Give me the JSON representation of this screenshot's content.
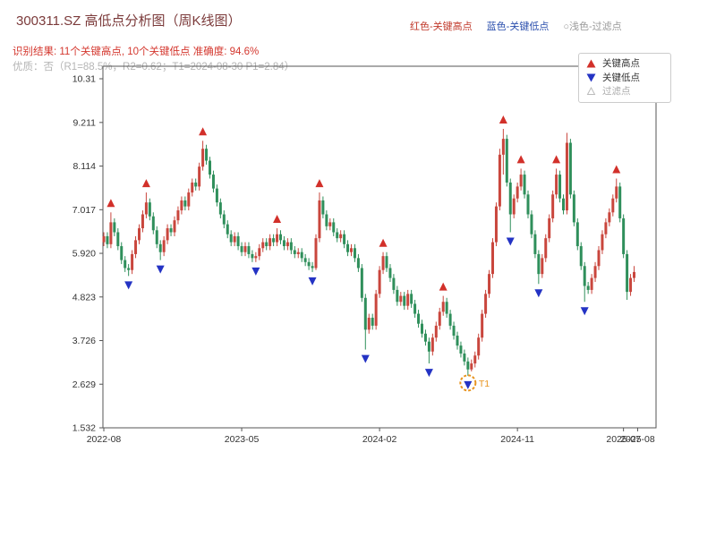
{
  "header": {
    "title": "300311.SZ 高低点分析图（周K线图）",
    "legend": [
      {
        "label": "红色-关键高点",
        "color": "#c0392b"
      },
      {
        "label": "蓝色-关键低点",
        "color": "#2b4fad"
      },
      {
        "label": "○浅色-过滤点",
        "color": "#999999"
      }
    ],
    "result_line": "识别结果: 11个关键高点, 10个关键低点  准确度: 94.6%",
    "quality_line": "优质：否（R1=88.5%，R2=0.62；T1=2024-08-30 P1=2.84）"
  },
  "chart_legend": {
    "items": [
      {
        "label": "关键高点",
        "marker": "triangle-up",
        "color": "#d2302a",
        "text_color": "#333333"
      },
      {
        "label": "关键低点",
        "marker": "triangle-down",
        "color": "#2433c4",
        "text_color": "#333333"
      },
      {
        "label": "过滤点",
        "marker": "triangle-up-outline",
        "color": "#bbbbbb",
        "text_color": "#aaaaaa"
      }
    ]
  },
  "chart_data": {
    "type": "candlestick",
    "title": "300311.SZ 高低点分析图（周K线图）",
    "ylim": [
      1.532,
      10.31
    ],
    "y_ticks": [
      "10.31",
      "9.211",
      "8.114",
      "7.017",
      "5.920",
      "4.823",
      "3.726",
      "2.629",
      "1.532"
    ],
    "x_ticks": [
      {
        "index": 0,
        "label": "2022-08"
      },
      {
        "index": 39,
        "label": "2023-05"
      },
      {
        "index": 78,
        "label": "2024-02"
      },
      {
        "index": 117,
        "label": "2024-11"
      },
      {
        "index": 147,
        "label": "2025-07"
      },
      {
        "index": 151,
        "label": "2025-08"
      }
    ],
    "up_color": "#c9463d",
    "down_color": "#2f8f5b",
    "high_marker_color": "#d2302a",
    "low_marker_color": "#2433c4",
    "candles": [
      [
        6.2,
        6.45,
        6.1,
        6.35
      ],
      [
        6.35,
        6.45,
        6.05,
        6.15
      ],
      [
        6.15,
        6.95,
        6.05,
        6.7
      ],
      [
        6.7,
        6.8,
        6.35,
        6.45
      ],
      [
        6.45,
        6.55,
        6.0,
        6.1
      ],
      [
        6.1,
        6.2,
        5.65,
        5.75
      ],
      [
        5.75,
        5.85,
        5.45,
        5.55
      ],
      [
        5.55,
        5.65,
        5.35,
        5.5
      ],
      [
        5.5,
        6.0,
        5.4,
        5.9
      ],
      [
        5.9,
        6.35,
        5.8,
        6.25
      ],
      [
        6.25,
        6.65,
        6.15,
        6.55
      ],
      [
        6.55,
        7.0,
        6.45,
        6.9
      ],
      [
        6.9,
        7.45,
        6.8,
        7.2
      ],
      [
        7.2,
        7.3,
        6.75,
        6.85
      ],
      [
        6.85,
        6.95,
        6.4,
        6.5
      ],
      [
        6.5,
        6.6,
        6.05,
        6.15
      ],
      [
        6.15,
        6.25,
        5.75,
        5.95
      ],
      [
        5.95,
        6.35,
        5.85,
        6.25
      ],
      [
        6.25,
        6.65,
        6.15,
        6.55
      ],
      [
        6.55,
        6.65,
        6.35,
        6.45
      ],
      [
        6.45,
        6.85,
        6.35,
        6.75
      ],
      [
        6.75,
        7.1,
        6.65,
        7.0
      ],
      [
        7.0,
        7.35,
        6.9,
        7.25
      ],
      [
        7.25,
        7.35,
        7.0,
        7.1
      ],
      [
        7.1,
        7.55,
        7.0,
        7.45
      ],
      [
        7.45,
        7.8,
        7.35,
        7.7
      ],
      [
        7.7,
        7.8,
        7.5,
        7.6
      ],
      [
        7.6,
        8.2,
        7.5,
        8.1
      ],
      [
        8.1,
        8.75,
        8.0,
        8.55
      ],
      [
        8.55,
        8.65,
        8.15,
        8.25
      ],
      [
        8.25,
        8.35,
        7.8,
        7.9
      ],
      [
        7.9,
        8.0,
        7.45,
        7.55
      ],
      [
        7.55,
        7.65,
        7.1,
        7.2
      ],
      [
        7.2,
        7.3,
        6.8,
        6.9
      ],
      [
        6.9,
        7.0,
        6.55,
        6.65
      ],
      [
        6.65,
        6.75,
        6.3,
        6.4
      ],
      [
        6.4,
        6.5,
        6.1,
        6.2
      ],
      [
        6.2,
        6.45,
        6.1,
        6.35
      ],
      [
        6.35,
        6.45,
        6.0,
        6.1
      ],
      [
        6.1,
        6.2,
        5.85,
        5.95
      ],
      [
        5.95,
        6.2,
        5.85,
        6.1
      ],
      [
        6.1,
        6.2,
        5.8,
        5.9
      ],
      [
        5.9,
        6.0,
        5.7,
        5.8
      ],
      [
        5.8,
        5.95,
        5.7,
        5.85
      ],
      [
        5.85,
        6.15,
        5.75,
        6.05
      ],
      [
        6.05,
        6.3,
        5.95,
        6.2
      ],
      [
        6.2,
        6.3,
        6.0,
        6.1
      ],
      [
        6.1,
        6.4,
        6.0,
        6.3
      ],
      [
        6.3,
        6.4,
        6.1,
        6.2
      ],
      [
        6.2,
        6.55,
        6.1,
        6.4
      ],
      [
        6.4,
        6.5,
        6.15,
        6.25
      ],
      [
        6.25,
        6.35,
        6.0,
        6.1
      ],
      [
        6.1,
        6.3,
        6.0,
        6.2
      ],
      [
        6.2,
        6.3,
        5.9,
        6.0
      ],
      [
        6.0,
        6.1,
        5.8,
        5.9
      ],
      [
        5.9,
        6.05,
        5.8,
        5.95
      ],
      [
        5.95,
        6.05,
        5.7,
        5.8
      ],
      [
        5.8,
        5.9,
        5.6,
        5.7
      ],
      [
        5.7,
        5.8,
        5.5,
        5.6
      ],
      [
        5.6,
        5.7,
        5.45,
        5.55
      ],
      [
        5.55,
        6.4,
        5.5,
        6.3
      ],
      [
        6.3,
        7.45,
        6.2,
        7.25
      ],
      [
        7.25,
        7.35,
        6.8,
        6.9
      ],
      [
        6.9,
        7.0,
        6.5,
        6.6
      ],
      [
        6.6,
        6.8,
        6.5,
        6.7
      ],
      [
        6.7,
        6.8,
        6.35,
        6.45
      ],
      [
        6.45,
        6.55,
        6.2,
        6.3
      ],
      [
        6.3,
        6.5,
        6.2,
        6.4
      ],
      [
        6.4,
        6.5,
        6.05,
        6.15
      ],
      [
        6.15,
        6.25,
        5.85,
        5.95
      ],
      [
        5.95,
        6.15,
        5.85,
        6.05
      ],
      [
        6.05,
        6.15,
        5.7,
        5.8
      ],
      [
        5.8,
        5.9,
        5.45,
        5.55
      ],
      [
        5.55,
        5.65,
        4.7,
        4.8
      ],
      [
        4.8,
        4.9,
        3.5,
        4.0
      ],
      [
        4.0,
        4.4,
        3.9,
        4.3
      ],
      [
        4.3,
        4.4,
        4.0,
        4.1
      ],
      [
        4.1,
        5.0,
        4.0,
        4.9
      ],
      [
        4.9,
        5.6,
        4.8,
        5.5
      ],
      [
        5.5,
        5.95,
        5.4,
        5.85
      ],
      [
        5.85,
        5.95,
        5.45,
        5.55
      ],
      [
        5.55,
        5.65,
        5.2,
        5.3
      ],
      [
        5.3,
        5.4,
        4.9,
        5.0
      ],
      [
        5.0,
        5.1,
        4.6,
        4.7
      ],
      [
        4.7,
        4.95,
        4.6,
        4.85
      ],
      [
        4.85,
        4.95,
        4.5,
        4.6
      ],
      [
        4.6,
        5.0,
        4.5,
        4.9
      ],
      [
        4.9,
        5.0,
        4.55,
        4.65
      ],
      [
        4.65,
        4.75,
        4.3,
        4.4
      ],
      [
        4.4,
        4.5,
        4.05,
        4.15
      ],
      [
        4.15,
        4.25,
        3.8,
        3.9
      ],
      [
        3.9,
        4.0,
        3.6,
        3.7
      ],
      [
        3.7,
        3.8,
        3.15,
        3.45
      ],
      [
        3.45,
        3.9,
        3.35,
        3.8
      ],
      [
        3.8,
        4.2,
        3.7,
        4.1
      ],
      [
        4.1,
        4.55,
        4.0,
        4.45
      ],
      [
        4.45,
        4.85,
        4.35,
        4.7
      ],
      [
        4.7,
        4.8,
        4.3,
        4.4
      ],
      [
        4.4,
        4.5,
        4.0,
        4.1
      ],
      [
        4.1,
        4.2,
        3.75,
        3.85
      ],
      [
        3.85,
        3.95,
        3.5,
        3.6
      ],
      [
        3.6,
        3.7,
        3.3,
        3.4
      ],
      [
        3.4,
        3.5,
        3.1,
        3.2
      ],
      [
        3.2,
        3.3,
        2.84,
        3.0
      ],
      [
        3.0,
        3.25,
        2.95,
        3.15
      ],
      [
        3.15,
        3.45,
        3.05,
        3.35
      ],
      [
        3.35,
        3.9,
        3.25,
        3.8
      ],
      [
        3.8,
        4.5,
        3.7,
        4.4
      ],
      [
        4.4,
        5.0,
        4.3,
        4.9
      ],
      [
        4.9,
        5.5,
        4.8,
        5.4
      ],
      [
        5.4,
        6.3,
        5.3,
        6.2
      ],
      [
        6.2,
        7.2,
        6.1,
        7.1
      ],
      [
        7.1,
        8.55,
        7.0,
        8.4
      ],
      [
        8.4,
        9.05,
        7.9,
        8.8
      ],
      [
        8.8,
        8.9,
        7.6,
        7.7
      ],
      [
        7.7,
        7.8,
        6.45,
        6.9
      ],
      [
        6.9,
        7.4,
        6.8,
        7.3
      ],
      [
        7.3,
        7.7,
        7.2,
        7.6
      ],
      [
        7.6,
        8.05,
        7.5,
        7.9
      ],
      [
        7.9,
        8.0,
        7.3,
        7.4
      ],
      [
        7.4,
        7.5,
        6.8,
        6.9
      ],
      [
        6.9,
        7.0,
        6.3,
        6.4
      ],
      [
        6.4,
        6.5,
        5.8,
        5.9
      ],
      [
        5.9,
        6.0,
        5.15,
        5.4
      ],
      [
        5.4,
        5.9,
        5.3,
        5.8
      ],
      [
        5.8,
        6.4,
        5.7,
        6.3
      ],
      [
        6.3,
        6.9,
        6.2,
        6.8
      ],
      [
        6.8,
        7.5,
        6.7,
        7.4
      ],
      [
        7.4,
        8.05,
        7.3,
        7.9
      ],
      [
        7.9,
        8.0,
        7.2,
        7.3
      ],
      [
        7.3,
        7.4,
        6.9,
        7.0
      ],
      [
        7.0,
        8.95,
        6.9,
        8.7
      ],
      [
        8.7,
        8.8,
        7.3,
        7.4
      ],
      [
        7.4,
        7.5,
        6.6,
        6.7
      ],
      [
        6.7,
        6.8,
        6.0,
        6.1
      ],
      [
        6.1,
        6.2,
        5.5,
        5.6
      ],
      [
        5.6,
        5.7,
        4.7,
        5.1
      ],
      [
        5.1,
        5.2,
        4.9,
        5.0
      ],
      [
        5.0,
        5.4,
        4.9,
        5.3
      ],
      [
        5.3,
        5.7,
        5.2,
        5.6
      ],
      [
        5.6,
        6.1,
        5.5,
        6.0
      ],
      [
        6.0,
        6.5,
        5.9,
        6.4
      ],
      [
        6.4,
        6.8,
        6.3,
        6.7
      ],
      [
        6.7,
        7.05,
        6.6,
        6.95
      ],
      [
        6.95,
        7.4,
        6.85,
        7.3
      ],
      [
        7.3,
        7.8,
        7.2,
        7.6
      ],
      [
        7.6,
        7.7,
        6.7,
        6.8
      ],
      [
        6.8,
        6.9,
        5.8,
        5.9
      ],
      [
        5.9,
        6.0,
        4.75,
        4.95
      ],
      [
        4.95,
        5.4,
        4.85,
        5.3
      ],
      [
        5.3,
        5.6,
        5.2,
        5.45
      ]
    ],
    "key_high_points": [
      {
        "index": 2,
        "price": 6.95
      },
      {
        "index": 12,
        "price": 7.45
      },
      {
        "index": 28,
        "price": 8.75
      },
      {
        "index": 49,
        "price": 6.55
      },
      {
        "index": 61,
        "price": 7.45
      },
      {
        "index": 79,
        "price": 5.95
      },
      {
        "index": 96,
        "price": 4.85
      },
      {
        "index": 113,
        "price": 9.05
      },
      {
        "index": 118,
        "price": 8.05
      },
      {
        "index": 128,
        "price": 8.05
      },
      {
        "index": 145,
        "price": 7.8
      }
    ],
    "key_low_points": [
      {
        "index": 7,
        "price": 5.35
      },
      {
        "index": 16,
        "price": 5.75
      },
      {
        "index": 43,
        "price": 5.7
      },
      {
        "index": 59,
        "price": 5.45
      },
      {
        "index": 74,
        "price": 3.5
      },
      {
        "index": 92,
        "price": 3.15
      },
      {
        "index": 103,
        "price": 2.84
      },
      {
        "index": 115,
        "price": 6.45
      },
      {
        "index": 123,
        "price": 5.15
      },
      {
        "index": 136,
        "price": 4.7
      }
    ],
    "annotation": {
      "label": "T1",
      "index": 103,
      "price": 2.84,
      "color": "#e8941f"
    }
  }
}
